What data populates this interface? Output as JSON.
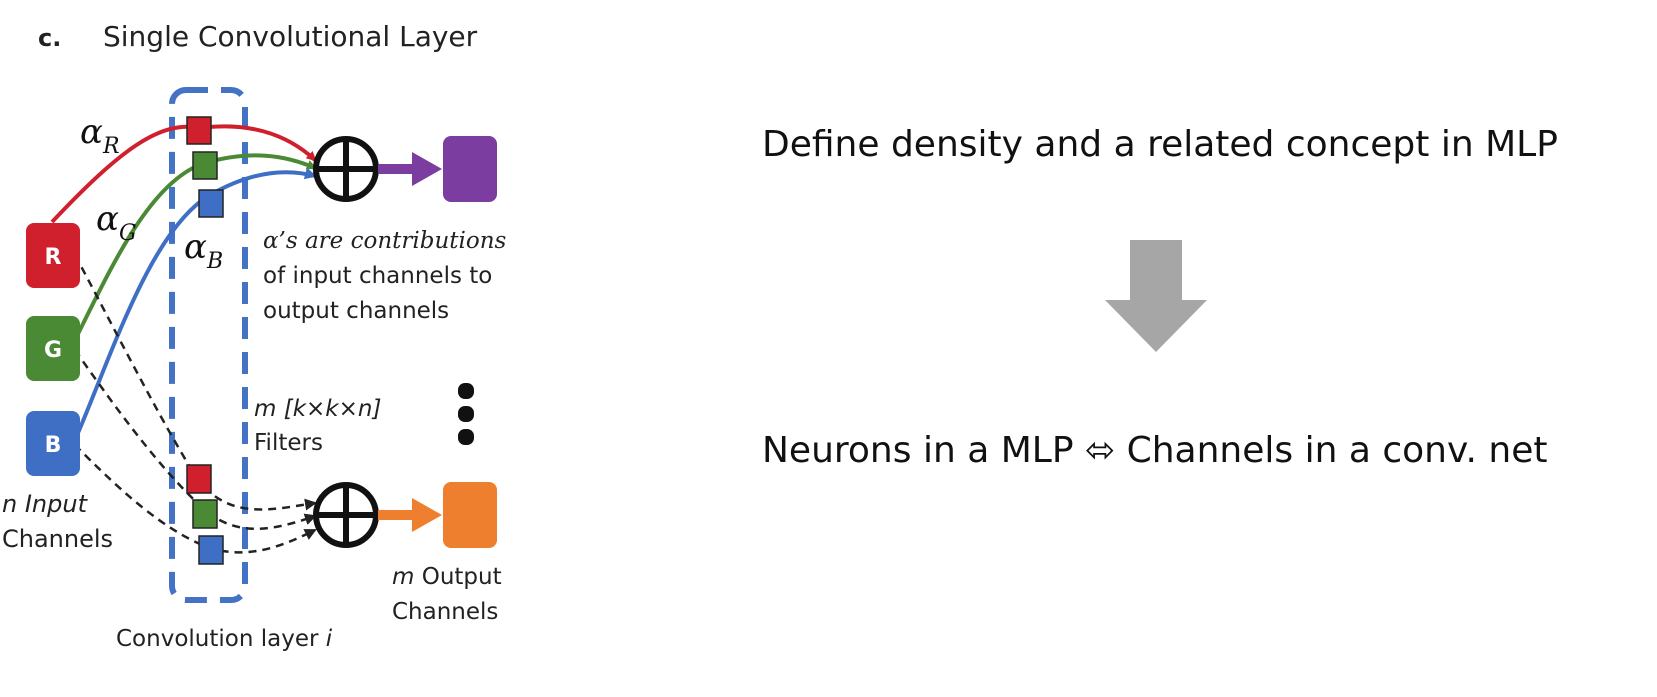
{
  "panel": {
    "letter": "c.",
    "title": "Single Convolutional Layer"
  },
  "inputs": {
    "r": "R",
    "g": "G",
    "b": "B",
    "label_line1": "n Input",
    "label_line2": "Channels"
  },
  "weights": {
    "alpha": "α",
    "r_sub": "R",
    "g_sub": "G",
    "b_sub": "B"
  },
  "note": {
    "line1": "α’s are contributions",
    "line2": "of input channels to",
    "line3": "output channels"
  },
  "filters": {
    "line1_m": "m",
    "line1_rest": "[k×k×n]",
    "line2": "Filters"
  },
  "outputs": {
    "label_m": "m",
    "label_rest": "Output",
    "label_line2": "Channels"
  },
  "layer_caption": {
    "text": "Convolution layer",
    "index": "i"
  },
  "right": {
    "top_text": "Define density and a related concept in MLP",
    "bottom_text": "Neurons in a MLP ⬄ Channels in a conv. net"
  },
  "colors": {
    "red": "#d0202e",
    "green": "#4a8a35",
    "blue": "#3f6fc4",
    "purple": "#7b3ea0",
    "orange": "#ee7f2e",
    "dashed_box": "#4472c4",
    "arrow_gray": "#a6a6a6"
  },
  "icons": {
    "sum_node": "circle-plus-icon",
    "flow_arrow": "down-arrow-icon"
  }
}
